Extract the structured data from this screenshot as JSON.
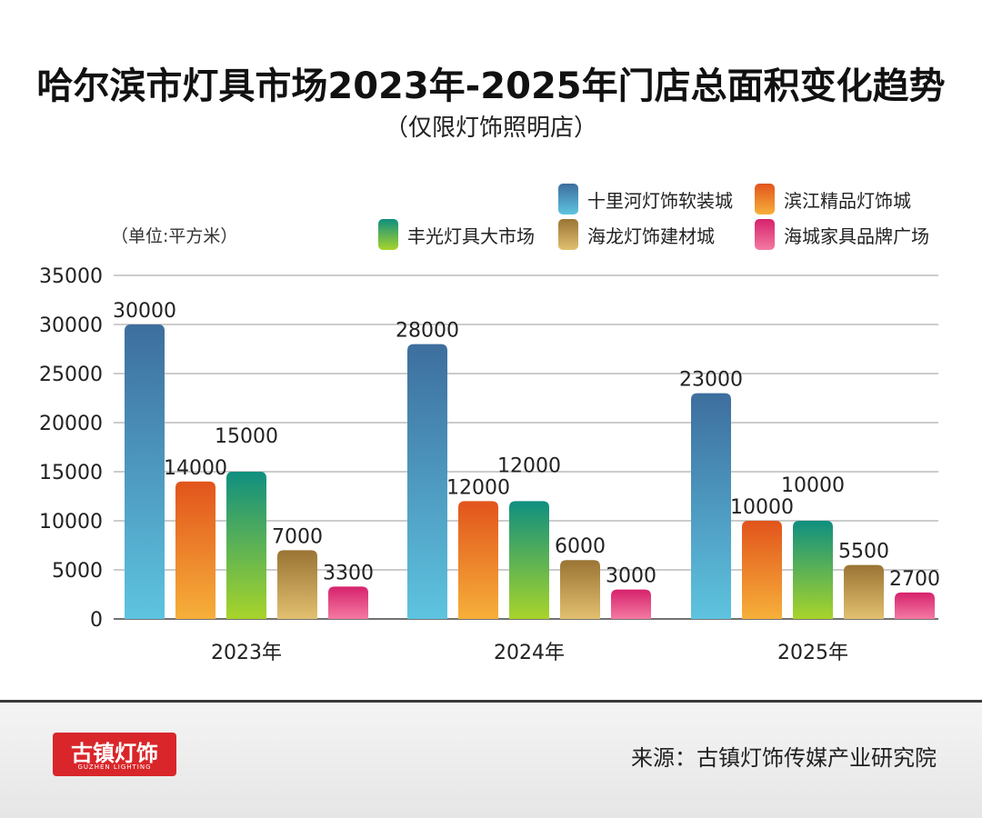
{
  "chart_data": {
    "type": "bar",
    "title": "哈尔滨市灯具市场2023年-2025年门店总面积变化趋势",
    "subtitle": "（仅限灯饰照明店）",
    "unit_label": "（单位:平方米）",
    "categories": [
      "2023年",
      "2024年",
      "2025年"
    ],
    "ylim": [
      0,
      35000
    ],
    "yticks": [
      "0",
      "5000",
      "10000",
      "15000",
      "20000",
      "25000",
      "30000",
      "35000"
    ],
    "legend_position": "top-right",
    "grid": true,
    "series": [
      {
        "name": "十里河灯饰软装城",
        "values": [
          30000,
          28000,
          23000
        ],
        "labels": [
          "30000",
          "28000",
          "23000"
        ],
        "color_top": "#3d6e9e",
        "color_bottom": "#5ec4e0"
      },
      {
        "name": "滨江精品灯饰城",
        "values": [
          14000,
          12000,
          10000
        ],
        "labels": [
          "14000",
          "12000",
          "10000"
        ],
        "color_top": "#e2541c",
        "color_bottom": "#f6b03a"
      },
      {
        "name": "丰光灯具大市场",
        "values": [
          15000,
          12000,
          10000
        ],
        "labels": [
          "15000",
          "12000",
          "10000"
        ],
        "color_top": "#0f8f80",
        "color_bottom": "#a8d42a"
      },
      {
        "name": "海龙灯饰建材城",
        "values": [
          7000,
          6000,
          5500
        ],
        "labels": [
          "7000",
          "6000",
          "5500"
        ],
        "color_top": "#9a7434",
        "color_bottom": "#e2c070"
      },
      {
        "name": "海城家具品牌广场",
        "values": [
          3300,
          3000,
          2700
        ],
        "labels": [
          "3300",
          "3000",
          "2700"
        ],
        "color_top": "#d6226c",
        "color_bottom": "#f47aa2"
      }
    ]
  },
  "logo": {
    "main": "古镇灯饰",
    "sub": "GUZHEN LIGHTING"
  },
  "source": "来源：古镇灯饰传媒产业研究院"
}
